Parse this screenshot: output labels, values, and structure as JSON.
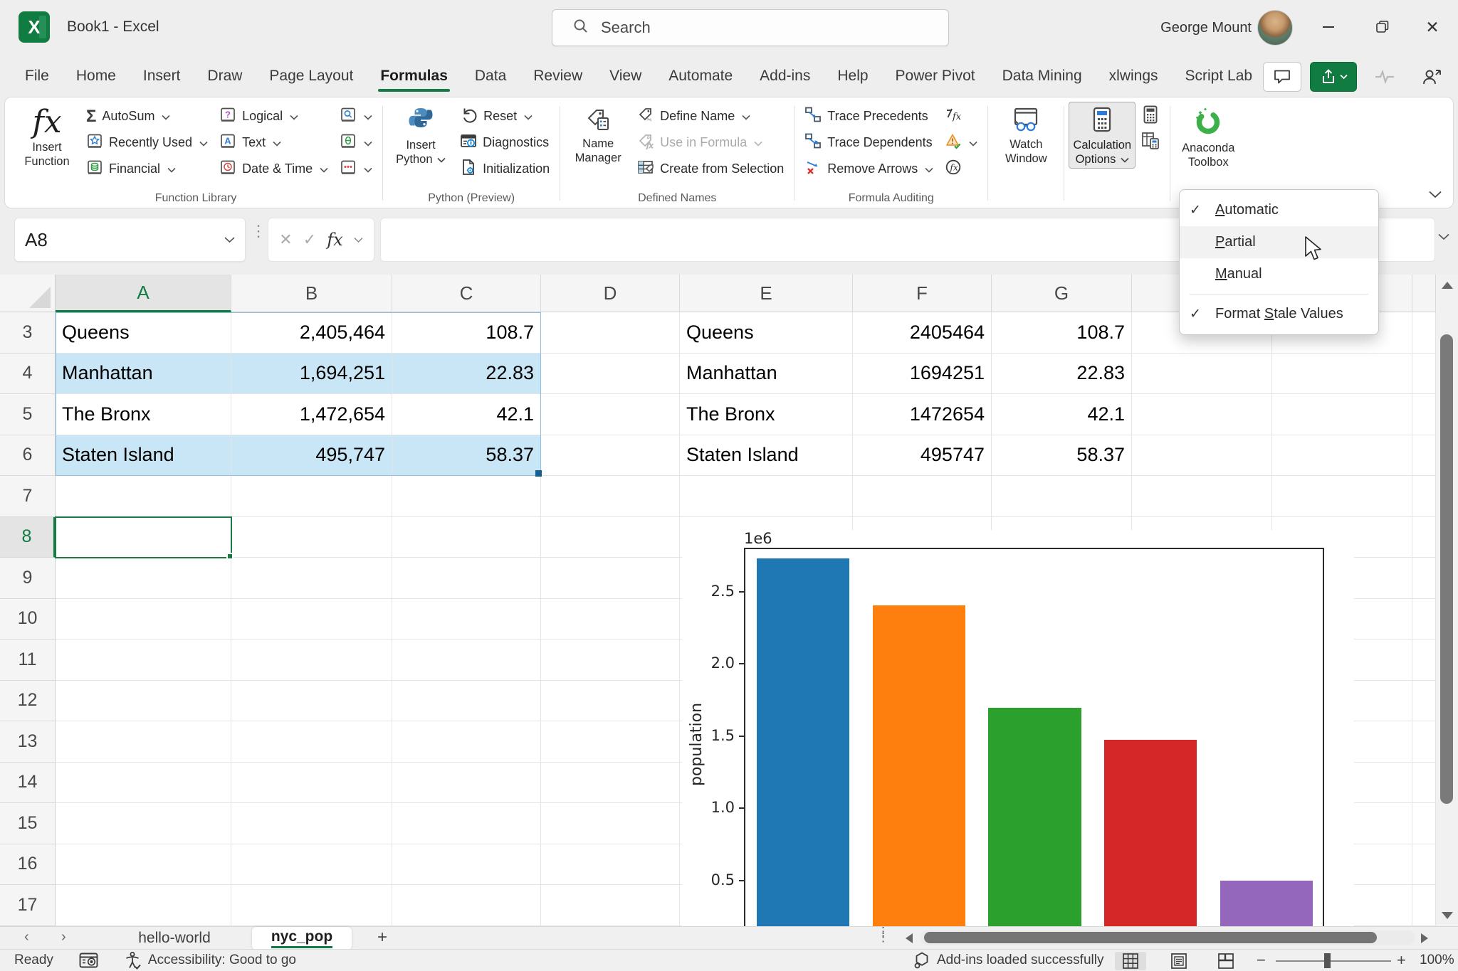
{
  "titlebar": {
    "title": "Book1  -  Excel",
    "search_placeholder": "Search",
    "user_name": "George Mount"
  },
  "tabs": {
    "items": [
      "File",
      "Home",
      "Insert",
      "Draw",
      "Page Layout",
      "Formulas",
      "Data",
      "Review",
      "View",
      "Automate",
      "Add-ins",
      "Help",
      "Power Pivot",
      "Data Mining",
      "xlwings",
      "Script Lab"
    ],
    "active": "Formulas"
  },
  "ribbon": {
    "groups": [
      {
        "label": "Function Library",
        "columns": [
          {
            "type": "big",
            "name": "insert-function",
            "label_lines": [
              "Insert",
              "Function"
            ],
            "icon": "insert-function-icon"
          },
          {
            "type": "stack",
            "buttons": [
              {
                "label": "AutoSum",
                "icon": "autosum-icon",
                "chevron": true,
                "name": "autosum"
              },
              {
                "label": "Recently Used",
                "icon": "recently-used-icon",
                "chevron": true,
                "name": "recently-used"
              },
              {
                "label": "Financial",
                "icon": "financial-icon",
                "chevron": true,
                "name": "financial"
              }
            ]
          },
          {
            "type": "stack",
            "buttons": [
              {
                "label": "Logical",
                "icon": "logical-icon",
                "chevron": true,
                "name": "logical"
              },
              {
                "label": "Text",
                "icon": "text-icon",
                "chevron": true,
                "name": "text"
              },
              {
                "label": "Date & Time",
                "icon": "date-time-icon",
                "chevron": true,
                "name": "date-time"
              }
            ]
          },
          {
            "type": "stack",
            "buttons": [
              {
                "label": "",
                "icon": "lookup-reference-icon",
                "chevron": true,
                "name": "lookup-reference"
              },
              {
                "label": "",
                "icon": "math-trig-icon",
                "chevron": true,
                "name": "math-trig"
              },
              {
                "label": "",
                "icon": "more-functions-icon",
                "chevron": true,
                "name": "more-functions"
              }
            ]
          }
        ]
      },
      {
        "label": "Python (Preview)",
        "columns": [
          {
            "type": "big",
            "name": "insert-python",
            "label_lines": [
              "Insert",
              "Python"
            ],
            "icon": "python-icon",
            "chevron": true
          },
          {
            "type": "stack",
            "buttons": [
              {
                "label": "Reset",
                "icon": "reset-icon",
                "chevron": true,
                "name": "reset"
              },
              {
                "label": "Diagnostics",
                "icon": "diagnostics-icon",
                "name": "diagnostics"
              },
              {
                "label": "Initialization",
                "icon": "initialization-icon",
                "name": "initialization"
              }
            ]
          }
        ]
      },
      {
        "label": "Defined Names",
        "columns": [
          {
            "type": "big",
            "name": "name-manager",
            "label_lines": [
              "Name",
              "Manager"
            ],
            "icon": "name-manager-icon"
          },
          {
            "type": "stack",
            "buttons": [
              {
                "label": "Define Name",
                "icon": "define-name-icon",
                "chevron": true,
                "name": "define-name"
              },
              {
                "label": "Use in Formula",
                "icon": "use-in-formula-icon",
                "chevron": true,
                "disabled": true,
                "name": "use-in-formula"
              },
              {
                "label": "Create from Selection",
                "icon": "create-from-selection-icon",
                "name": "create-from-selection"
              }
            ]
          }
        ]
      },
      {
        "label": "Formula Auditing",
        "columns": [
          {
            "type": "stack",
            "buttons": [
              {
                "label": "Trace Precedents",
                "icon": "trace-precedents-icon",
                "name": "trace-precedents"
              },
              {
                "label": "Trace Dependents",
                "icon": "trace-dependents-icon",
                "name": "trace-dependents"
              },
              {
                "label": "Remove Arrows",
                "icon": "remove-arrows-icon",
                "chevron": true,
                "name": "remove-arrows"
              }
            ]
          },
          {
            "type": "stack",
            "buttons": [
              {
                "label": "",
                "icon": "show-formulas-icon",
                "name": "show-formulas"
              },
              {
                "label": "",
                "icon": "error-checking-icon",
                "chevron": true,
                "name": "error-checking"
              },
              {
                "label": "",
                "icon": "evaluate-formula-icon",
                "name": "evaluate-formula"
              }
            ]
          }
        ]
      },
      {
        "label": "",
        "columns": [
          {
            "type": "big",
            "name": "watch-window",
            "label_lines": [
              "Watch",
              "Window"
            ],
            "icon": "watch-window-icon"
          }
        ]
      },
      {
        "label": "",
        "columns": [
          {
            "type": "big",
            "name": "calculation-options",
            "label_lines": [
              "Calculation",
              "Options"
            ],
            "icon": "calculation-options-icon",
            "chevron": true,
            "pressed": true
          },
          {
            "type": "stack",
            "buttons": [
              {
                "label": "",
                "icon": "calculate-now-icon",
                "name": "calculate-now"
              },
              {
                "label": "",
                "icon": "calculate-sheet-icon",
                "name": "calculate-sheet"
              }
            ]
          }
        ]
      },
      {
        "label": "",
        "columns": [
          {
            "type": "big",
            "name": "anaconda-toolbox",
            "label_lines": [
              "Anaconda",
              "Toolbox"
            ],
            "icon": "anaconda-icon"
          }
        ]
      }
    ]
  },
  "formula_bar": {
    "cell_reference": "A8",
    "formula_value": ""
  },
  "sheet": {
    "columns": [
      "A",
      "B",
      "C",
      "D",
      "E",
      "F",
      "G"
    ],
    "row_numbers": [
      3,
      4,
      5,
      6,
      7,
      8,
      9,
      10,
      11,
      12,
      13,
      14,
      15,
      16,
      17
    ],
    "selected_column": "A",
    "selected_row": 8,
    "selected_cell": "A8",
    "data_rows": [
      {
        "row": 3,
        "banded": false,
        "values": {
          "A": "Queens",
          "B": "2,405,464",
          "C": "108.7",
          "E": "Queens",
          "F": "2405464",
          "G": "108.7"
        }
      },
      {
        "row": 4,
        "banded": true,
        "values": {
          "A": "Manhattan",
          "B": "1,694,251",
          "C": "22.83",
          "E": "Manhattan",
          "F": "1694251",
          "G": "22.83"
        }
      },
      {
        "row": 5,
        "banded": false,
        "values": {
          "A": "The Bronx",
          "B": "1,472,654",
          "C": "42.1",
          "E": "The Bronx",
          "F": "1472654",
          "G": "42.1"
        }
      },
      {
        "row": 6,
        "banded": true,
        "values": {
          "A": "Staten Island",
          "B": "495,747",
          "C": "58.37",
          "E": "Staten Island",
          "F": "495747",
          "G": "58.37"
        }
      }
    ]
  },
  "chart_data": {
    "type": "bar",
    "values": [
      2730000,
      2405464,
      1694251,
      1472654,
      495747
    ],
    "bar_colors": [
      "#1f77b4",
      "#ff7f0e",
      "#2ca02c",
      "#d62728",
      "#9467bd"
    ],
    "ylabel": "population",
    "offset_text": "1e6",
    "yticks": [
      0.5,
      1.0,
      1.5,
      2.0,
      2.5
    ],
    "ylim": [
      0,
      2800000
    ],
    "x_tick_labels_visible": false,
    "grid": false,
    "legend": false
  },
  "calc_menu": {
    "items": [
      {
        "label": "Automatic",
        "mnemonic": "A",
        "checked": true,
        "hovered": false,
        "separator_before": false
      },
      {
        "label": "Partial",
        "mnemonic": "P",
        "checked": false,
        "hovered": true,
        "separator_before": false
      },
      {
        "label": "Manual",
        "mnemonic": "M",
        "checked": false,
        "hovered": false,
        "separator_before": false
      },
      {
        "label": "Format Stale Values",
        "mnemonic": "S",
        "checked": true,
        "hovered": false,
        "separator_before": true
      }
    ]
  },
  "sheet_tabs": {
    "tabs": [
      "hello-world",
      "nyc_pop"
    ],
    "active": "nyc_pop"
  },
  "status_bar": {
    "mode": "Ready",
    "accessibility": "Accessibility: Good to go",
    "addins": "Add-ins loaded successfully",
    "zoom": "100%"
  }
}
